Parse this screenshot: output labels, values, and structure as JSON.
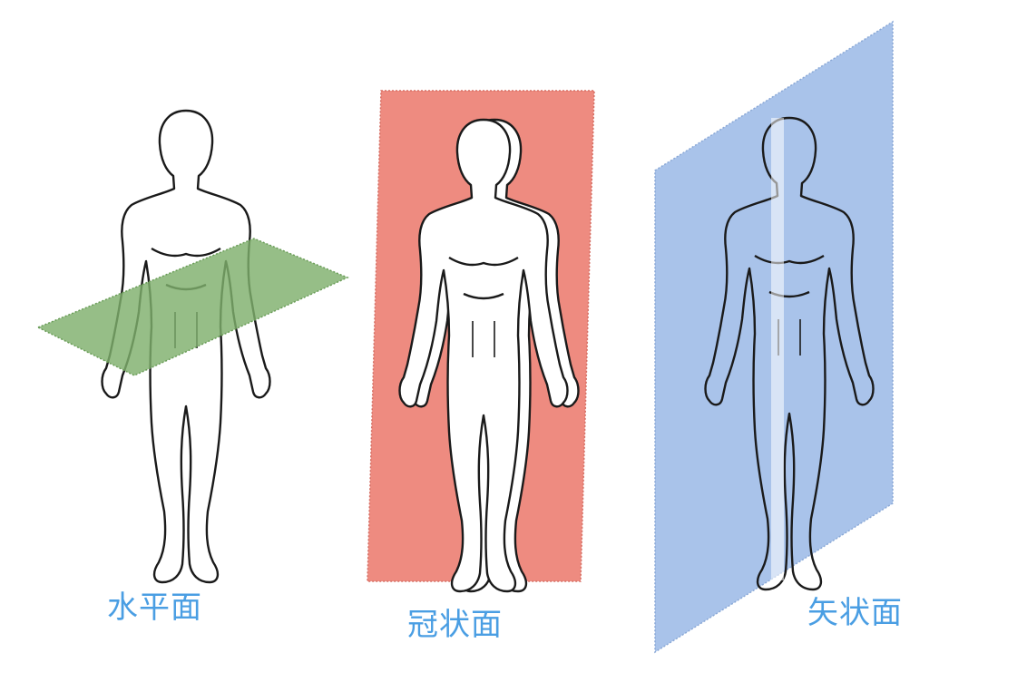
{
  "planes": {
    "horizontal": {
      "label": "水平面",
      "color": "#7fb06c"
    },
    "coronal": {
      "label": "冠状面",
      "color": "#ee8b80"
    },
    "sagittal": {
      "label": "矢状面",
      "color": "#a9c3ea"
    }
  },
  "colors": {
    "label_text": "#4a9ee3",
    "figure_outline": "#1a1a1a",
    "background": "#ffffff"
  }
}
